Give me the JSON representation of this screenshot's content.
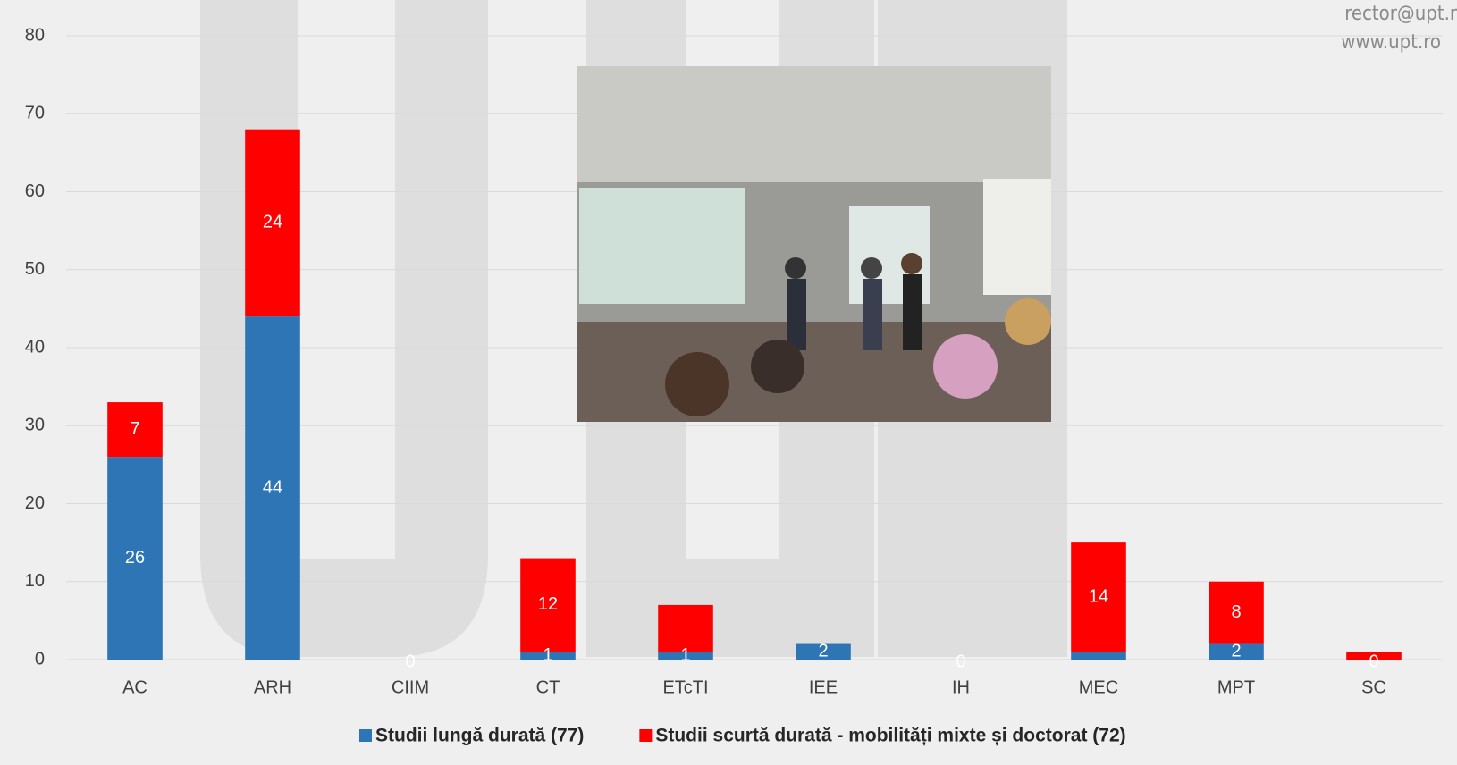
{
  "chart_data": {
    "type": "stacked_bar",
    "watermark": [
      "rector@upt.r",
      "www.upt.ro"
    ],
    "categories": [
      "AC",
      "ARH",
      "CIIM",
      "CT",
      "ETcTI",
      "IEE",
      "IH",
      "MEC",
      "MPT",
      "SC"
    ],
    "series": [
      {
        "name": "Studii lungă durată (77)",
        "color": "#2e75b6",
        "values": [
          26,
          44,
          0,
          1,
          1,
          2,
          0,
          1,
          2,
          0
        ],
        "value_labels": [
          26,
          44,
          0,
          1,
          1,
          2,
          0,
          null,
          2,
          0
        ]
      },
      {
        "name": "Studii scurtă durată - mobilități mixte și doctorat (72)",
        "color": "#ff0000",
        "values": [
          7,
          24,
          0,
          12,
          6,
          0,
          0,
          14,
          8,
          1
        ],
        "value_labels": [
          7,
          24,
          null,
          12,
          null,
          null,
          null,
          14,
          8,
          null
        ]
      }
    ],
    "ylim": [
      0,
      80
    ],
    "yticks": [
      0,
      10,
      20,
      30,
      40,
      50,
      60,
      70,
      80
    ],
    "grid": true,
    "legend": "bottom"
  }
}
